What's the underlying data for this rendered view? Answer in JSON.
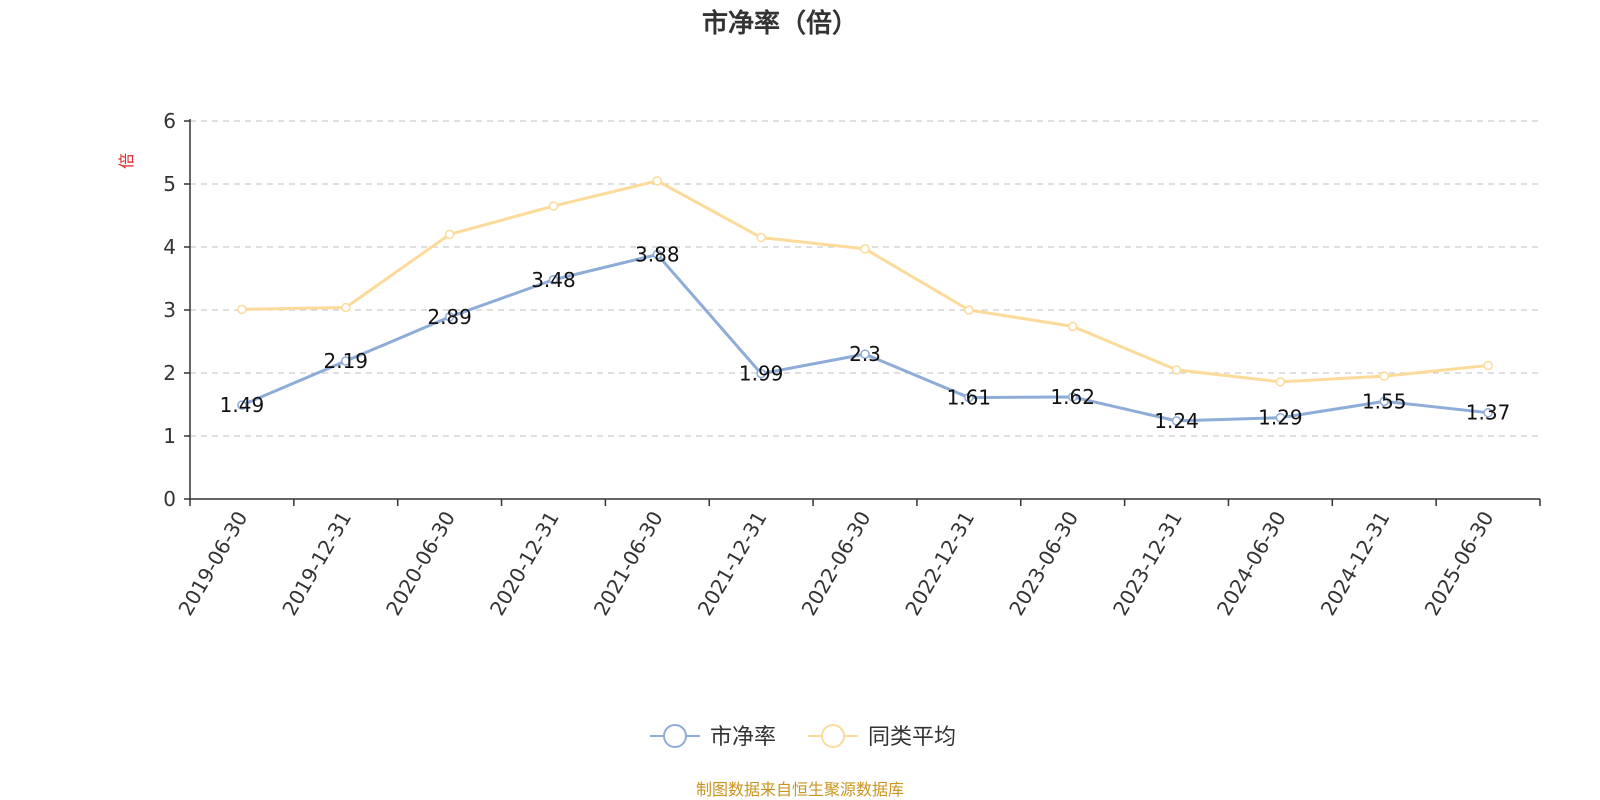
{
  "colors": {
    "series1": "#8eacd8",
    "series2": "#fcdb9a",
    "axis": "#333333",
    "grid": "#cccccc",
    "unit": "#e0262a",
    "source": "#c9951e"
  },
  "source": "制图数据来自恒生聚源数据库",
  "chart_data": {
    "type": "line",
    "title": "市净率（倍）",
    "ylabel": "倍",
    "ylim": [
      0,
      6
    ],
    "yticks": [
      0,
      1,
      2,
      3,
      4,
      5,
      6
    ],
    "grid": true,
    "legend": "bottom-center",
    "categories": [
      "2019-06-30",
      "2019-12-31",
      "2020-06-30",
      "2020-12-31",
      "2021-06-30",
      "2021-12-31",
      "2022-06-30",
      "2022-12-31",
      "2023-06-30",
      "2023-12-31",
      "2024-06-30",
      "2024-12-31",
      "2025-06-30"
    ],
    "series": [
      {
        "name": "市净率",
        "values": [
          1.49,
          2.19,
          2.89,
          3.48,
          3.88,
          1.99,
          2.3,
          1.61,
          1.62,
          1.24,
          1.29,
          1.55,
          1.37
        ],
        "labels": [
          "1.49",
          "2.19",
          "2.89",
          "3.48",
          "3.88",
          "1.99",
          "2.3",
          "1.61",
          "1.62",
          "1.24",
          "1.29",
          "1.55",
          "1.37"
        ]
      },
      {
        "name": "同类平均",
        "values": [
          3.01,
          3.04,
          4.2,
          4.65,
          5.05,
          4.15,
          3.97,
          3.0,
          2.74,
          2.05,
          1.86,
          1.95,
          2.12
        ]
      }
    ]
  }
}
